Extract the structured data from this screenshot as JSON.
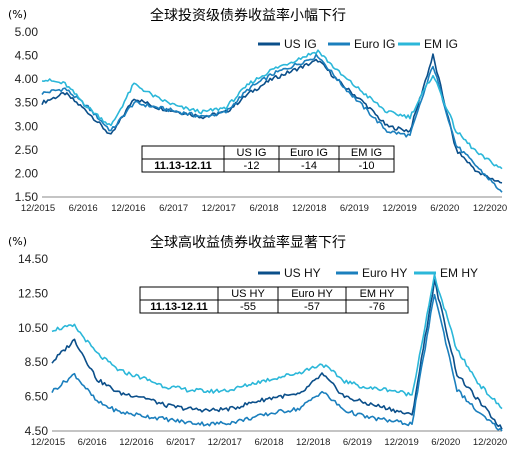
{
  "charts": [
    {
      "id": "ig",
      "title": "全球投资级债券收益率小幅下行",
      "unit": "(%)",
      "y_ticks": [
        "5.00",
        "4.50",
        "4.00",
        "3.50",
        "3.00",
        "2.50",
        "2.00",
        "1.50"
      ],
      "x_ticks": [
        "12/2015",
        "6/2016",
        "12/2016",
        "6/2017",
        "12/2017",
        "6/2018",
        "12/2018",
        "6/2019",
        "12/2019",
        "6/2020",
        "12/2020"
      ],
      "table": {
        "headers": [
          "",
          "US IG",
          "Euro IG",
          "EM IG"
        ],
        "rows": [
          [
            "11.13-12.11",
            "-12",
            "-14",
            "-10"
          ]
        ]
      }
    },
    {
      "id": "hy",
      "title": "全球高收益债券收益率显著下行",
      "unit": "(%)",
      "y_ticks": [
        "14.50",
        "12.50",
        "10.50",
        "8.50",
        "6.50",
        "4.50"
      ],
      "x_ticks": [
        "12/2015",
        "6/2016",
        "12/2016",
        "6/2017",
        "12/2017",
        "6/2018",
        "12/2018",
        "6/2019",
        "12/2019",
        "6/2020",
        "12/2020"
      ],
      "table": {
        "headers": [
          "",
          "US HY",
          "Euro HY",
          "EM HY"
        ],
        "rows": [
          [
            "11.13-12.11",
            "-55",
            "-57",
            "-76"
          ]
        ]
      }
    }
  ],
  "chart_data": [
    {
      "type": "line",
      "title": "全球投资级债券收益率小幅下行",
      "ylabel": "(%)",
      "ylim": [
        1.5,
        5.0
      ],
      "x": [
        "12/2015",
        "3/2016",
        "6/2016",
        "9/2016",
        "12/2016",
        "3/2017",
        "6/2017",
        "9/2017",
        "12/2017",
        "3/2018",
        "6/2018",
        "9/2018",
        "12/2018",
        "3/2019",
        "6/2019",
        "9/2019",
        "12/2019",
        "3/2020",
        "6/2020",
        "9/2020",
        "12/2020"
      ],
      "legend_position": "top-right",
      "series": [
        {
          "name": "US IG",
          "color": "#0b4f8a",
          "values": [
            3.5,
            3.7,
            3.3,
            2.8,
            3.6,
            3.4,
            3.3,
            3.2,
            3.3,
            3.7,
            4.0,
            4.2,
            4.4,
            3.9,
            3.5,
            3.0,
            2.9,
            4.5,
            2.5,
            2.0,
            1.8
          ]
        },
        {
          "name": "Euro IG",
          "color": "#1b7fbd",
          "values": [
            3.7,
            3.8,
            3.4,
            2.9,
            3.5,
            3.4,
            3.3,
            3.2,
            3.3,
            3.8,
            4.1,
            4.3,
            4.5,
            3.9,
            3.4,
            2.9,
            2.8,
            4.3,
            2.6,
            2.1,
            1.6
          ]
        },
        {
          "name": "EM IG",
          "color": "#2bb7d9",
          "values": [
            4.0,
            3.9,
            3.4,
            3.0,
            3.9,
            3.6,
            3.4,
            3.3,
            3.4,
            3.9,
            4.2,
            4.4,
            4.6,
            4.1,
            3.7,
            3.3,
            3.2,
            4.1,
            2.9,
            2.4,
            2.1
          ]
        }
      ]
    },
    {
      "type": "line",
      "title": "全球高收益债券收益率显著下行",
      "ylabel": "(%)",
      "ylim": [
        4.5,
        14.5
      ],
      "x": [
        "12/2015",
        "3/2016",
        "6/2016",
        "9/2016",
        "12/2016",
        "3/2017",
        "6/2017",
        "9/2017",
        "12/2017",
        "3/2018",
        "6/2018",
        "9/2018",
        "12/2018",
        "3/2019",
        "6/2019",
        "9/2019",
        "12/2019",
        "3/2020",
        "6/2020",
        "9/2020",
        "12/2020"
      ],
      "legend_position": "top-right",
      "series": [
        {
          "name": "US HY",
          "color": "#0b4f8a",
          "values": [
            8.5,
            9.8,
            7.5,
            6.7,
            6.5,
            6.0,
            5.8,
            5.7,
            5.8,
            6.2,
            6.5,
            6.6,
            7.8,
            6.5,
            6.1,
            5.8,
            5.4,
            13.2,
            7.8,
            6.2,
            4.6
          ]
        },
        {
          "name": "Euro HY",
          "color": "#1b7fbd",
          "values": [
            6.8,
            7.8,
            6.2,
            5.6,
            5.4,
            5.2,
            5.0,
            4.9,
            5.0,
            5.3,
            5.6,
            5.8,
            6.8,
            5.7,
            5.3,
            5.1,
            4.9,
            12.5,
            6.9,
            5.5,
            4.5
          ]
        },
        {
          "name": "EM HY",
          "color": "#2bb7d9",
          "values": [
            10.4,
            10.6,
            9.0,
            8.0,
            7.6,
            7.1,
            6.9,
            6.8,
            6.9,
            7.3,
            7.6,
            7.9,
            8.4,
            7.4,
            7.0,
            6.9,
            6.6,
            13.5,
            9.2,
            7.2,
            5.8
          ]
        }
      ]
    }
  ]
}
